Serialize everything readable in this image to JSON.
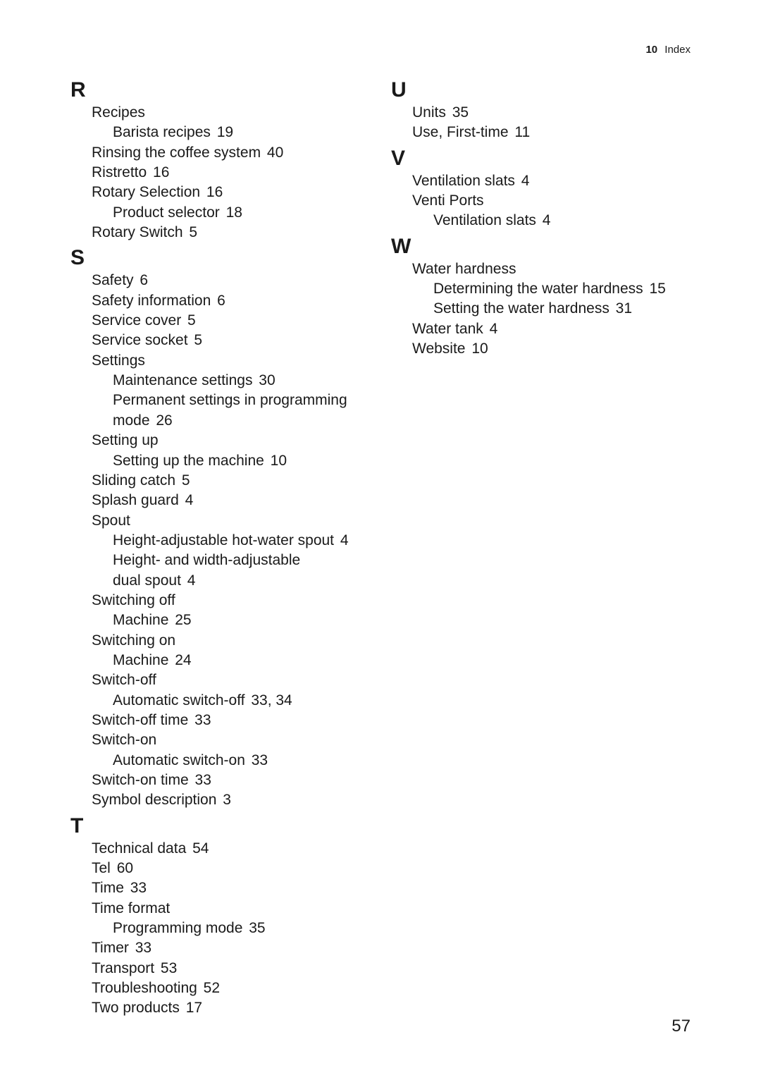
{
  "header": {
    "num": "10",
    "title": "Index"
  },
  "page_number": "57",
  "left_col": [
    {
      "letter": "R",
      "entries": [
        {
          "t": "Recipes",
          "p": "",
          "subs": [
            {
              "t": "Barista recipes",
              "p": "19"
            }
          ]
        },
        {
          "t": "Rinsing the coffee system",
          "p": "40"
        },
        {
          "t": "Ristretto",
          "p": "16"
        },
        {
          "t": "Rotary Selection",
          "p": "16",
          "subs": [
            {
              "t": "Product selector",
              "p": "18"
            }
          ]
        },
        {
          "t": "Rotary Switch",
          "p": "5"
        }
      ]
    },
    {
      "letter": "S",
      "entries": [
        {
          "t": "Safety",
          "p": "6"
        },
        {
          "t": "Safety information",
          "p": "6"
        },
        {
          "t": "Service cover",
          "p": "5"
        },
        {
          "t": "Service socket",
          "p": "5"
        },
        {
          "t": "Settings",
          "p": "",
          "subs": [
            {
              "t": "Maintenance settings",
              "p": "30"
            },
            {
              "t": "Permanent settings in programming mode",
              "p": "26",
              "twoLine": true,
              "line1": "Permanent settings in programming",
              "line2": "mode"
            }
          ]
        },
        {
          "t": "Setting up",
          "p": "",
          "subs": [
            {
              "t": "Setting up the machine",
              "p": "10"
            }
          ]
        },
        {
          "t": "Sliding catch",
          "p": "5"
        },
        {
          "t": "Splash guard",
          "p": "4"
        },
        {
          "t": "Spout",
          "p": "",
          "subs": [
            {
              "t": "Height-adjustable hot-water spout",
              "p": "4"
            },
            {
              "t": "Height- and width-adjustable dual spout",
              "p": "4",
              "twoLine": true,
              "line1": "Height- and width-adjustable",
              "line2": "dual spout"
            }
          ]
        },
        {
          "t": "Switching off",
          "p": "",
          "subs": [
            {
              "t": "Machine",
              "p": "25"
            }
          ]
        },
        {
          "t": "Switching on",
          "p": "",
          "subs": [
            {
              "t": "Machine",
              "p": "24"
            }
          ]
        },
        {
          "t": "Switch-off",
          "p": "",
          "subs": [
            {
              "t": "Automatic switch-off",
              "p": "33, 34"
            }
          ]
        },
        {
          "t": "Switch-off time",
          "p": "33"
        },
        {
          "t": "Switch-on",
          "p": "",
          "subs": [
            {
              "t": "Automatic switch-on",
              "p": "33"
            }
          ]
        },
        {
          "t": "Switch-on time",
          "p": "33"
        },
        {
          "t": "Symbol description",
          "p": "3"
        }
      ]
    },
    {
      "letter": "T",
      "entries": [
        {
          "t": "Technical data",
          "p": "54"
        },
        {
          "t": "Tel",
          "p": "60"
        },
        {
          "t": "Time",
          "p": "33"
        },
        {
          "t": "Time format",
          "p": "",
          "subs": [
            {
              "t": "Programming mode",
              "p": "35"
            }
          ]
        },
        {
          "t": "Timer",
          "p": "33"
        },
        {
          "t": "Transport",
          "p": "53"
        },
        {
          "t": "Troubleshooting",
          "p": "52"
        },
        {
          "t": "Two products",
          "p": "17"
        }
      ]
    }
  ],
  "right_col": [
    {
      "letter": "U",
      "entries": [
        {
          "t": "Units",
          "p": "35"
        },
        {
          "t": "Use, First-time",
          "p": "11"
        }
      ]
    },
    {
      "letter": "V",
      "entries": [
        {
          "t": "Ventilation slats",
          "p": "4"
        },
        {
          "t": "Venti Ports",
          "p": "",
          "subs": [
            {
              "t": "Ventilation slats",
              "p": "4"
            }
          ]
        }
      ]
    },
    {
      "letter": "W",
      "entries": [
        {
          "t": "Water hardness",
          "p": "",
          "subs": [
            {
              "t": "Determining the water hardness",
              "p": "15"
            },
            {
              "t": "Setting the water hardness",
              "p": "31"
            }
          ]
        },
        {
          "t": "Water tank",
          "p": "4"
        },
        {
          "t": "Website",
          "p": "10"
        }
      ]
    }
  ]
}
